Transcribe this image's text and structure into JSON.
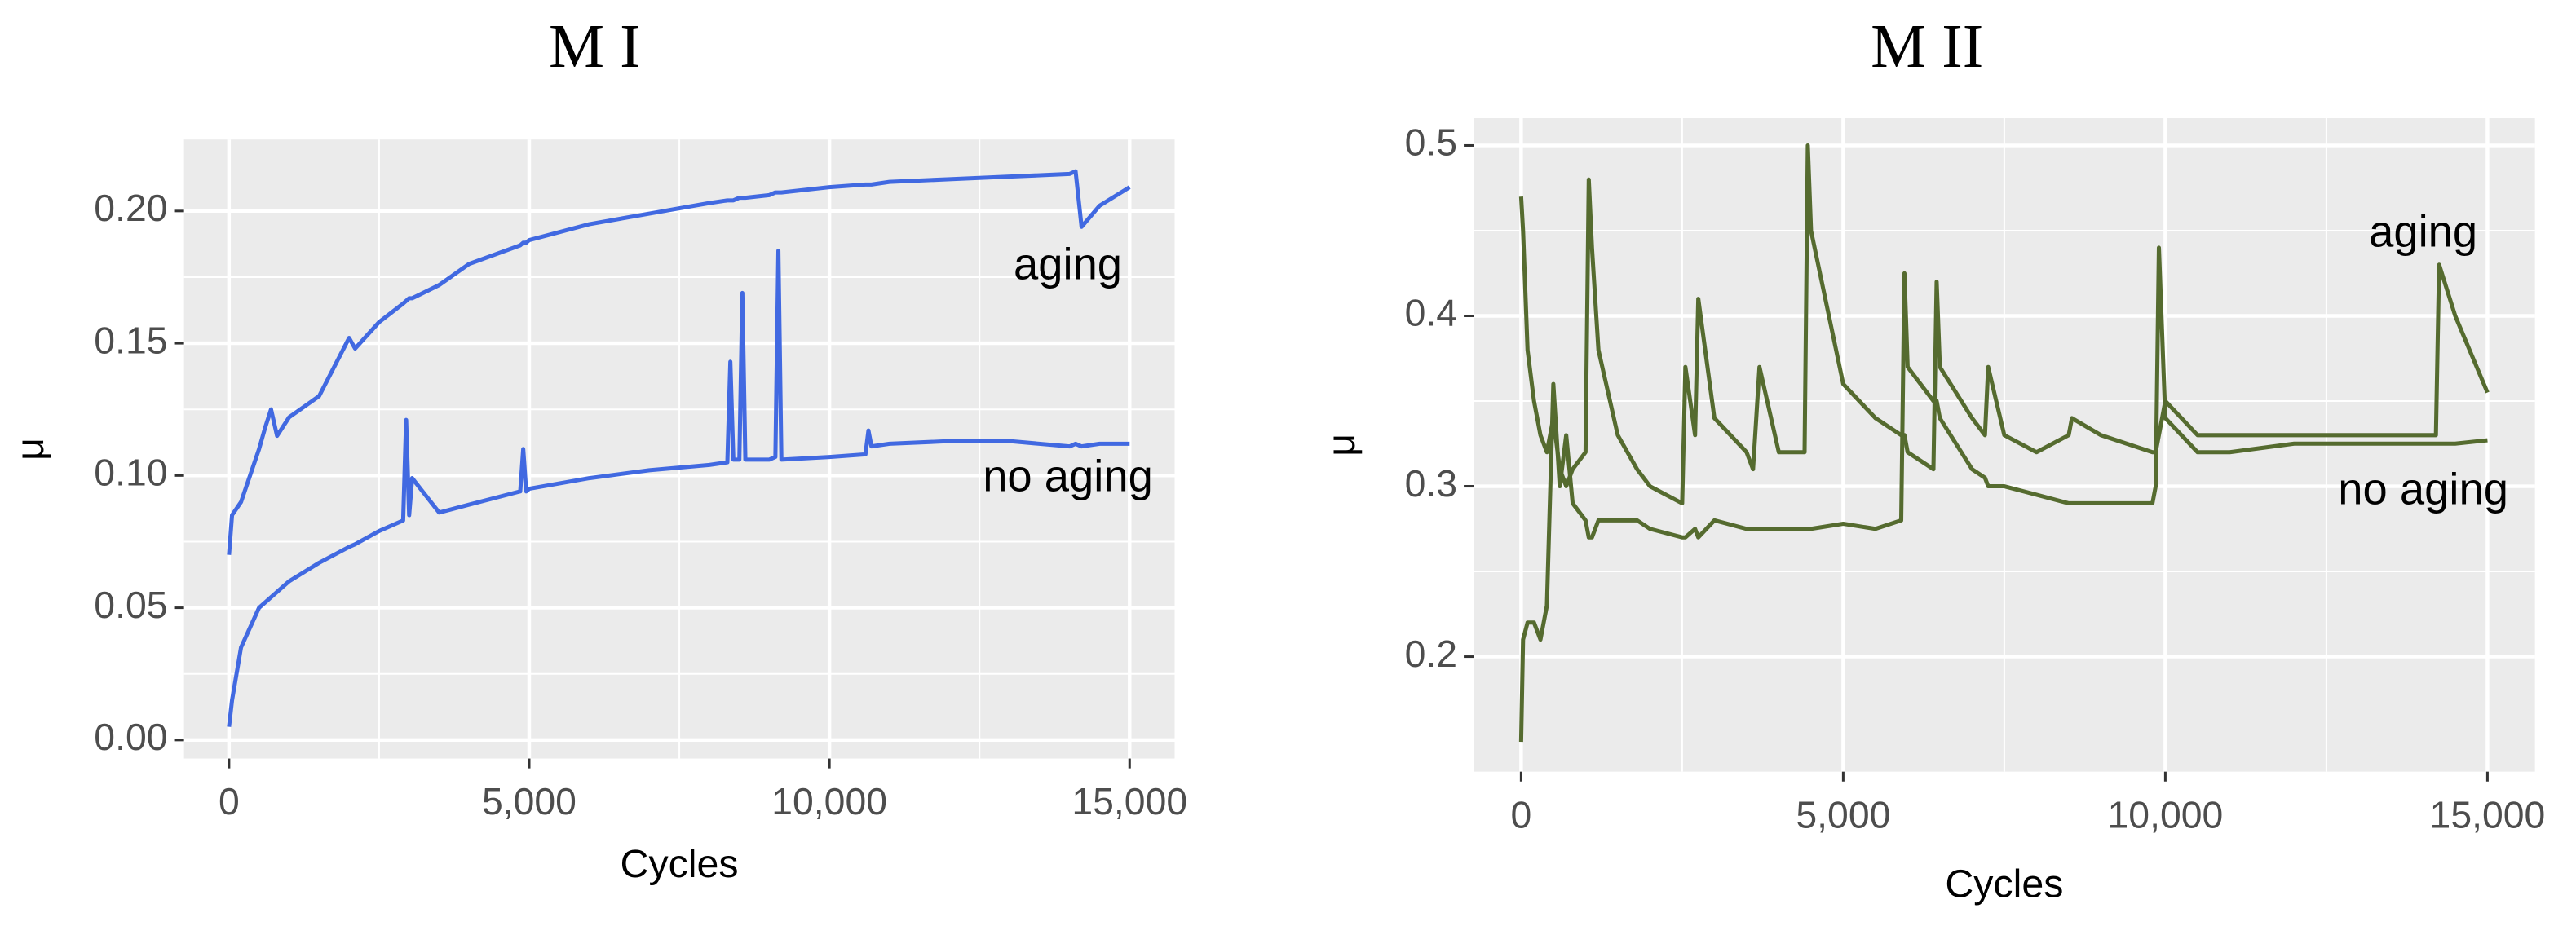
{
  "chart_data": [
    {
      "type": "line",
      "title": "M I",
      "x_label": "Cycles",
      "y_label": "μ",
      "x": [
        0,
        50,
        200,
        500,
        600,
        700,
        800,
        1000,
        1500,
        2000,
        2100,
        2500,
        2900,
        2950,
        3000,
        3050,
        3500,
        4000,
        4850,
        4900,
        4950,
        5000,
        6000,
        7000,
        8000,
        8300,
        8350,
        8400,
        8500,
        8550,
        8600,
        9000,
        9100,
        9150,
        9200,
        10000,
        10600,
        10650,
        10700,
        11000,
        12000,
        13000,
        14000,
        14100,
        14200,
        14500,
        15000
      ],
      "series": [
        {
          "name": "aging",
          "color": "#4169e1",
          "values": [
            0.07,
            0.085,
            0.09,
            0.11,
            0.118,
            0.125,
            0.115,
            0.122,
            0.13,
            0.152,
            0.148,
            0.158,
            0.165,
            0.166,
            0.167,
            0.167,
            0.172,
            0.18,
            0.187,
            0.188,
            0.188,
            0.189,
            0.195,
            0.199,
            0.203,
            0.204,
            0.204,
            0.204,
            0.205,
            0.205,
            0.205,
            0.206,
            0.207,
            0.207,
            0.207,
            0.209,
            0.21,
            0.21,
            0.21,
            0.211,
            0.212,
            0.213,
            0.214,
            0.215,
            0.194,
            0.202,
            0.209
          ]
        },
        {
          "name": "no aging",
          "color": "#4169e1",
          "values": [
            0.005,
            0.015,
            0.035,
            0.05,
            0.052,
            0.054,
            0.056,
            0.06,
            0.067,
            0.073,
            0.074,
            0.079,
            0.083,
            0.121,
            0.085,
            0.099,
            0.086,
            0.089,
            0.094,
            0.11,
            0.094,
            0.095,
            0.099,
            0.102,
            0.104,
            0.105,
            0.143,
            0.106,
            0.106,
            0.169,
            0.106,
            0.106,
            0.107,
            0.185,
            0.106,
            0.107,
            0.108,
            0.117,
            0.111,
            0.112,
            0.113,
            0.113,
            0.111,
            0.112,
            0.111,
            0.112,
            0.112
          ]
        }
      ],
      "xlim": [
        -750,
        15750
      ],
      "xticks": [
        0,
        {
          "value": 5000,
          "label": "5,000"
        },
        {
          "value": 10000,
          "label": "10,000"
        },
        {
          "value": 15000,
          "label": "15,000"
        }
      ],
      "ylim": [
        -0.007,
        0.227
      ],
      "yticks": [
        {
          "value": 0,
          "label": "0.00"
        },
        0.05,
        {
          "value": 0.1,
          "label": "0.10"
        },
        0.15,
        {
          "value": 0.2,
          "label": "0.20"
        }
      ],
      "grid": true
    },
    {
      "type": "line",
      "title": "M II",
      "x_label": "Cycles",
      "y_label": "μ",
      "x": [
        0,
        30,
        100,
        200,
        300,
        400,
        500,
        600,
        700,
        800,
        1000,
        1050,
        1100,
        1200,
        1500,
        1800,
        2000,
        2500,
        2550,
        2700,
        2750,
        3000,
        3500,
        3600,
        3700,
        4000,
        4400,
        4450,
        4500,
        5000,
        5500,
        5900,
        5950,
        6000,
        6400,
        6450,
        6500,
        7000,
        7200,
        7250,
        7500,
        8000,
        8500,
        8550,
        9000,
        9800,
        9850,
        9900,
        10000,
        10500,
        11000,
        12000,
        13000,
        14000,
        14200,
        14250,
        14500,
        15000
      ],
      "series": [
        {
          "name": "aging",
          "color": "#556b2f",
          "values": [
            0.47,
            0.45,
            0.38,
            0.35,
            0.33,
            0.32,
            0.34,
            0.31,
            0.3,
            0.31,
            0.32,
            0.48,
            0.44,
            0.38,
            0.33,
            0.31,
            0.3,
            0.29,
            0.37,
            0.33,
            0.41,
            0.34,
            0.32,
            0.31,
            0.37,
            0.32,
            0.32,
            0.5,
            0.45,
            0.36,
            0.34,
            0.33,
            0.33,
            0.32,
            0.31,
            0.42,
            0.37,
            0.34,
            0.33,
            0.37,
            0.33,
            0.32,
            0.33,
            0.34,
            0.33,
            0.32,
            0.32,
            0.33,
            0.35,
            0.33,
            0.33,
            0.33,
            0.33,
            0.33,
            0.33,
            0.43,
            0.4,
            0.355
          ]
        },
        {
          "name": "no aging",
          "color": "#556b2f",
          "values": [
            0.15,
            0.21,
            0.22,
            0.22,
            0.21,
            0.23,
            0.36,
            0.3,
            0.33,
            0.29,
            0.28,
            0.27,
            0.27,
            0.28,
            0.28,
            0.28,
            0.275,
            0.27,
            0.27,
            0.275,
            0.27,
            0.28,
            0.275,
            0.275,
            0.275,
            0.275,
            0.275,
            0.275,
            0.275,
            0.278,
            0.275,
            0.28,
            0.425,
            0.37,
            0.35,
            0.35,
            0.34,
            0.31,
            0.305,
            0.3,
            0.3,
            0.295,
            0.29,
            0.29,
            0.29,
            0.29,
            0.3,
            0.44,
            0.34,
            0.32,
            0.32,
            0.325,
            0.325,
            0.325,
            0.325,
            0.325,
            0.325,
            0.327
          ]
        }
      ],
      "xlim": [
        -737,
        15737
      ],
      "xticks": [
        0,
        {
          "value": 5000,
          "label": "5,000"
        },
        {
          "value": 10000,
          "label": "10,000"
        },
        {
          "value": 15000,
          "label": "15,000"
        }
      ],
      "ylim": [
        0.1325,
        0.516
      ],
      "yticks": [
        0.2,
        0.3,
        0.4,
        0.5
      ],
      "grid": true
    }
  ]
}
